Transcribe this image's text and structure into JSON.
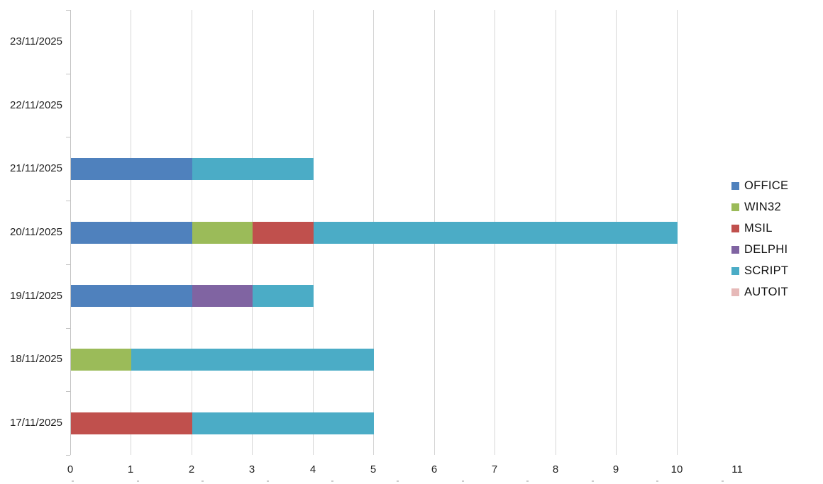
{
  "chart_data": {
    "type": "bar",
    "orientation": "horizontal",
    "stacked": true,
    "title": "",
    "xlabel": "",
    "ylabel": "",
    "categories": [
      "23/11/2025",
      "22/11/2025",
      "21/11/2025",
      "20/11/2025",
      "19/11/2025",
      "18/11/2025",
      "17/11/2025"
    ],
    "series": [
      {
        "name": "OFFICE",
        "color": "#4F81BD",
        "values": [
          0,
          0,
          2,
          2,
          2,
          0,
          0
        ]
      },
      {
        "name": "WIN32",
        "color": "#9BBB59",
        "values": [
          0,
          0,
          0,
          1,
          0,
          1,
          0
        ]
      },
      {
        "name": "MSIL",
        "color": "#C0504D",
        "values": [
          0,
          0,
          0,
          1,
          0,
          0,
          2
        ]
      },
      {
        "name": "DELPHI",
        "color": "#8064A2",
        "values": [
          0,
          0,
          0,
          0,
          1,
          0,
          0
        ]
      },
      {
        "name": "SCRIPT",
        "color": "#4BACC6",
        "values": [
          0,
          0,
          2,
          6,
          1,
          4,
          3
        ]
      },
      {
        "name": "AUTOIT",
        "color": "#E6B9B8",
        "values": [
          0,
          0,
          0,
          0,
          0,
          0,
          0
        ]
      }
    ],
    "row_totals": {
      "23/11/2025": 0,
      "22/11/2025": 0,
      "21/11/2025": 4,
      "20/11/2025": 10,
      "19/11/2025": 4,
      "18/11/2025": 5,
      "17/11/2025": 5
    },
    "x_axis": {
      "min": 0,
      "max": 11,
      "tick_step": 1,
      "tick_labels": [
        "0",
        "1",
        "2",
        "3",
        "4",
        "5",
        "6",
        "7",
        "8",
        "9",
        "10",
        "11"
      ],
      "gridline_ticks": [
        1,
        2,
        3,
        4,
        5,
        6,
        7,
        8,
        9,
        10
      ]
    },
    "legend": {
      "position": "right",
      "labels": [
        "OFFICE",
        "WIN32",
        "MSIL",
        "DELPHI",
        "SCRIPT",
        "AUTOIT"
      ]
    },
    "grid": "vertical major gridlines on, horizontal off"
  },
  "colors": {
    "background": "#FFFFFF",
    "gridline": "#D6D6D6",
    "axis_line": "#C3C3C3",
    "text": "#1F1F1F"
  }
}
